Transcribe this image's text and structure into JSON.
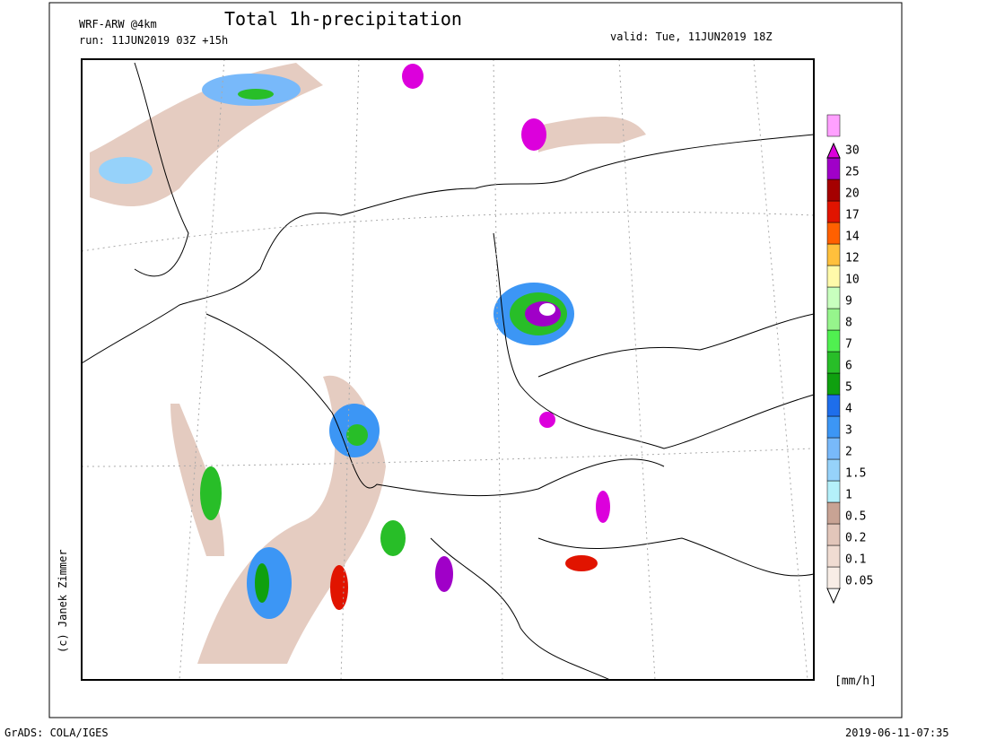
{
  "header": {
    "model": "WRF-ARW @4km",
    "title": "Total 1h-precipitation",
    "run": "run: 11JUN2019 03Z +15h",
    "valid": "valid: Tue, 11JUN2019 18Z"
  },
  "colorbar": {
    "levels": [
      0.05,
      0.1,
      0.2,
      0.5,
      1,
      1.5,
      2,
      3,
      4,
      5,
      6,
      7,
      8,
      9,
      10,
      12,
      14,
      17,
      20,
      25,
      30
    ],
    "colors": [
      "#ffffff",
      "#f8ede6",
      "#f0dcd2",
      "#e2c6ba",
      "#c8a394",
      "#b4f0fa",
      "#96d2fa",
      "#78b9fa",
      "#3c96f5",
      "#1e6eeb",
      "#0fa00f",
      "#28be28",
      "#50f050",
      "#96f58c",
      "#c8ffbe",
      "#fffaaa",
      "#ffc03c",
      "#ff6000",
      "#e11400",
      "#a50000",
      "#a000c8",
      "#dc00dc",
      "#ffa0ff"
    ],
    "unit": "[mm/h]"
  },
  "credits": {
    "author": "(c) Janek Zimmer",
    "software": "GrADS: COLA/IGES",
    "timestamp": "2019-06-11-07:35"
  }
}
